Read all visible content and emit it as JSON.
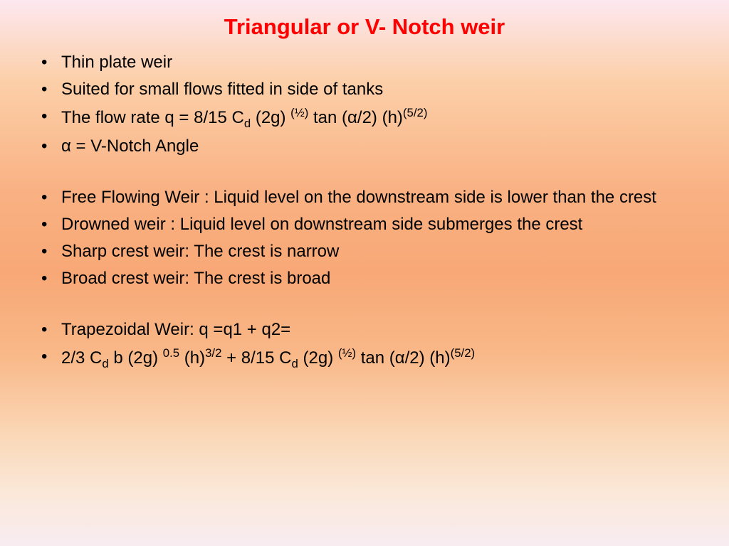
{
  "slide": {
    "title": "Triangular or V- Notch weir",
    "title_color": "#ff0000",
    "title_fontsize": 31,
    "body_fontsize": 24,
    "body_color": "#000000",
    "background_gradient": [
      "#fde8f0",
      "#fccfa8",
      "#f9b183",
      "#f8a876",
      "#f9b888",
      "#fad8b8",
      "#fbe8d8",
      "#f8ecf2"
    ],
    "groups": [
      {
        "items": [
          {
            "text": "Thin plate weir"
          },
          {
            "text": "Suited for small flows fitted in side of tanks"
          },
          {
            "html": "The flow rate q = 8/15 C<sub>d</sub> (2g) <sup>(½)</sup> tan (α/2) (h)<sup>(5/2)</sup>"
          },
          {
            "text": "α = V-Notch Angle"
          }
        ]
      },
      {
        "items": [
          {
            "text": "Free Flowing Weir : Liquid level on the downstream side is lower than the crest"
          },
          {
            "text": "Drowned weir : Liquid level on downstream side submerges the crest"
          },
          {
            "text": "Sharp crest weir: The crest is narrow"
          },
          {
            "text": "Broad crest weir: The crest is broad"
          }
        ]
      },
      {
        "items": [
          {
            "text": "Trapezoidal Weir: q =q1 + q2="
          },
          {
            "html": " 2/3 C<sub>d</sub> b (2g) <sup>0.5</sup> (h)<sup>3/2</sup> + 8/15 C<sub>d</sub> (2g) <sup>(½)</sup> tan (α/2) (h)<sup>(5/2)</sup>"
          }
        ]
      }
    ]
  }
}
